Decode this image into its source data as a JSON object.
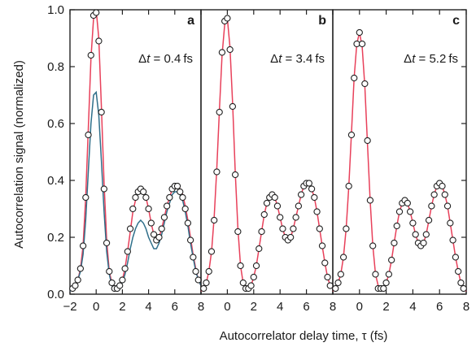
{
  "chart_data": {
    "type": "scatter",
    "ylabel": "Autocorrelation signal (normalized)",
    "xlabel": "Autocorrelator delay time, τ (fs)",
    "ylim": [
      0,
      1.0
    ],
    "y_ticks": [
      "0.0",
      "0.2",
      "0.4",
      "0.6",
      "0.8",
      "1.0"
    ],
    "grid": false,
    "colors": {
      "fit": "#e8405a",
      "fit_a_secondary": "#d66a2a",
      "fit_a_tertiary": "#2f6f8a",
      "data_marker": "#ffffff",
      "marker_edge": "#222222"
    },
    "panels": [
      {
        "letter": "a",
        "annotation_symbol": "Δ",
        "annotation_var": "t",
        "annotation_value": " = 0.4 fs",
        "xlim": [
          -2,
          8
        ],
        "x_ticks": [
          "−2",
          "0",
          "2",
          "4",
          "6",
          "8"
        ],
        "series": [
          {
            "kind": "points",
            "x": [
              -1.8,
              -1.6,
              -1.4,
              -1.2,
              -1.0,
              -0.8,
              -0.6,
              -0.4,
              -0.2,
              0.0,
              0.2,
              0.4,
              0.6,
              0.8,
              1.0,
              1.2,
              1.4,
              1.6,
              1.8,
              2.0,
              2.2,
              2.4,
              2.6,
              2.8,
              3.0,
              3.2,
              3.4,
              3.6,
              3.8,
              4.0,
              4.2,
              4.4,
              4.6,
              4.8,
              5.0,
              5.2,
              5.4,
              5.6,
              5.8,
              6.0,
              6.2,
              6.4,
              6.6,
              6.8,
              7.0,
              7.2,
              7.4,
              7.6,
              7.8
            ],
            "y": [
              0.02,
              0.03,
              0.05,
              0.09,
              0.17,
              0.34,
              0.56,
              0.84,
              0.98,
              0.99,
              0.89,
              0.64,
              0.37,
              0.18,
              0.08,
              0.04,
              0.02,
              0.02,
              0.03,
              0.05,
              0.09,
              0.15,
              0.23,
              0.3,
              0.34,
              0.36,
              0.37,
              0.36,
              0.34,
              0.3,
              0.25,
              0.21,
              0.19,
              0.2,
              0.23,
              0.27,
              0.31,
              0.34,
              0.37,
              0.38,
              0.38,
              0.36,
              0.34,
              0.3,
              0.25,
              0.19,
              0.13,
              0.08,
              0.05
            ]
          },
          {
            "kind": "line",
            "x": [
              -2.0,
              -1.8,
              -1.6,
              -1.4,
              -1.2,
              -1.0,
              -0.8,
              -0.6,
              -0.4,
              -0.2,
              0.0,
              0.2,
              0.4,
              0.6,
              0.8,
              1.0,
              1.2,
              1.4,
              1.6,
              1.8,
              2.0,
              2.2,
              2.4,
              2.6,
              2.8,
              3.0,
              3.2,
              3.4,
              3.6,
              3.8,
              4.0,
              4.2,
              4.4,
              4.6,
              4.8,
              5.0,
              5.2,
              5.4,
              5.6,
              5.8,
              6.0,
              6.2,
              6.4,
              6.6,
              6.8,
              7.0,
              7.2,
              7.4,
              7.6,
              7.8,
              8.0
            ],
            "y": [
              0.01,
              0.02,
              0.03,
              0.05,
              0.09,
              0.17,
              0.34,
              0.58,
              0.83,
              0.97,
              1.0,
              0.9,
              0.66,
              0.39,
              0.19,
              0.08,
              0.04,
              0.02,
              0.02,
              0.03,
              0.05,
              0.09,
              0.15,
              0.22,
              0.29,
              0.33,
              0.36,
              0.37,
              0.36,
              0.34,
              0.3,
              0.25,
              0.21,
              0.19,
              0.2,
              0.23,
              0.27,
              0.31,
              0.34,
              0.37,
              0.38,
              0.38,
              0.37,
              0.35,
              0.31,
              0.26,
              0.2,
              0.14,
              0.09,
              0.05,
              0.03
            ]
          },
          {
            "kind": "line",
            "x": [
              -2.0,
              -1.8,
              -1.6,
              -1.4,
              -1.2,
              -1.0,
              -0.8,
              -0.6,
              -0.4,
              -0.2,
              0.0,
              0.2,
              0.4,
              0.6,
              0.8,
              1.0,
              1.2,
              1.4,
              1.6,
              1.8,
              2.0,
              2.2,
              2.4,
              2.6,
              2.8,
              3.0,
              3.2,
              3.4,
              3.6,
              3.8,
              4.0,
              4.2,
              4.4,
              4.6,
              4.8,
              5.0,
              5.2,
              5.4,
              5.6,
              5.8,
              6.0,
              6.2,
              6.4,
              6.6,
              6.8,
              7.0,
              7.2,
              7.4,
              7.6,
              7.8,
              8.0
            ],
            "y": [
              0.01,
              0.02,
              0.03,
              0.05,
              0.08,
              0.14,
              0.26,
              0.43,
              0.6,
              0.7,
              0.71,
              0.63,
              0.47,
              0.29,
              0.15,
              0.07,
              0.03,
              0.02,
              0.02,
              0.03,
              0.04,
              0.07,
              0.11,
              0.16,
              0.2,
              0.23,
              0.25,
              0.26,
              0.25,
              0.23,
              0.2,
              0.18,
              0.16,
              0.16,
              0.18,
              0.21,
              0.25,
              0.29,
              0.32,
              0.35,
              0.36,
              0.36,
              0.35,
              0.33,
              0.29,
              0.24,
              0.18,
              0.13,
              0.08,
              0.05,
              0.03
            ]
          }
        ]
      },
      {
        "letter": "b",
        "annotation_symbol": "Δ",
        "annotation_var": "t",
        "annotation_value": " = 3.4 fs",
        "xlim": [
          -2,
          8
        ],
        "x_ticks": [
          "0",
          "2",
          "4",
          "6",
          "8"
        ],
        "series": [
          {
            "kind": "points",
            "x": [
              -1.8,
              -1.6,
              -1.4,
              -1.2,
              -1.0,
              -0.8,
              -0.6,
              -0.4,
              -0.2,
              0.0,
              0.2,
              0.4,
              0.6,
              0.8,
              1.0,
              1.2,
              1.4,
              1.6,
              1.8,
              2.0,
              2.2,
              2.4,
              2.6,
              2.8,
              3.0,
              3.2,
              3.4,
              3.6,
              3.8,
              4.0,
              4.2,
              4.4,
              4.6,
              4.8,
              5.0,
              5.2,
              5.4,
              5.6,
              5.8,
              6.0,
              6.2,
              6.4,
              6.6,
              6.8,
              7.0,
              7.2,
              7.4,
              7.6,
              7.8
            ],
            "y": [
              0.02,
              0.04,
              0.08,
              0.15,
              0.26,
              0.43,
              0.64,
              0.85,
              0.96,
              0.97,
              0.86,
              0.66,
              0.42,
              0.22,
              0.1,
              0.04,
              0.02,
              0.02,
              0.03,
              0.06,
              0.1,
              0.16,
              0.22,
              0.28,
              0.32,
              0.34,
              0.35,
              0.34,
              0.31,
              0.27,
              0.23,
              0.2,
              0.19,
              0.2,
              0.23,
              0.27,
              0.31,
              0.35,
              0.38,
              0.39,
              0.39,
              0.37,
              0.34,
              0.29,
              0.23,
              0.17,
              0.11,
              0.06,
              0.03
            ]
          },
          {
            "kind": "line",
            "x": [
              -2.0,
              -1.8,
              -1.6,
              -1.4,
              -1.2,
              -1.0,
              -0.8,
              -0.6,
              -0.4,
              -0.2,
              0.0,
              0.2,
              0.4,
              0.6,
              0.8,
              1.0,
              1.2,
              1.4,
              1.6,
              1.8,
              2.0,
              2.2,
              2.4,
              2.6,
              2.8,
              3.0,
              3.2,
              3.4,
              3.6,
              3.8,
              4.0,
              4.2,
              4.4,
              4.6,
              4.8,
              5.0,
              5.2,
              5.4,
              5.6,
              5.8,
              6.0,
              6.2,
              6.4,
              6.6,
              6.8,
              7.0,
              7.2,
              7.4,
              7.6,
              7.8,
              8.0
            ],
            "y": [
              0.01,
              0.02,
              0.04,
              0.08,
              0.15,
              0.27,
              0.44,
              0.65,
              0.84,
              0.95,
              0.97,
              0.87,
              0.67,
              0.43,
              0.23,
              0.1,
              0.04,
              0.02,
              0.02,
              0.03,
              0.06,
              0.1,
              0.16,
              0.22,
              0.28,
              0.32,
              0.34,
              0.35,
              0.34,
              0.31,
              0.27,
              0.23,
              0.2,
              0.19,
              0.2,
              0.23,
              0.27,
              0.31,
              0.35,
              0.38,
              0.39,
              0.39,
              0.37,
              0.34,
              0.29,
              0.23,
              0.17,
              0.11,
              0.06,
              0.03,
              0.02
            ]
          }
        ]
      },
      {
        "letter": "c",
        "annotation_symbol": "Δ",
        "annotation_var": "t",
        "annotation_value": " = 5.2 fs",
        "xlim": [
          -2,
          8
        ],
        "x_ticks": [
          "0",
          "2",
          "4",
          "6",
          "8"
        ],
        "series": [
          {
            "kind": "points",
            "x": [
              -1.8,
              -1.6,
              -1.4,
              -1.2,
              -1.0,
              -0.8,
              -0.6,
              -0.4,
              -0.2,
              0.0,
              0.2,
              0.4,
              0.6,
              0.8,
              1.0,
              1.2,
              1.4,
              1.6,
              1.8,
              2.0,
              2.2,
              2.4,
              2.6,
              2.8,
              3.0,
              3.2,
              3.4,
              3.6,
              3.8,
              4.0,
              4.2,
              4.4,
              4.6,
              4.8,
              5.0,
              5.2,
              5.4,
              5.6,
              5.8,
              6.0,
              6.2,
              6.4,
              6.6,
              6.8,
              7.0,
              7.2,
              7.4,
              7.6,
              7.8
            ],
            "y": [
              0.02,
              0.04,
              0.07,
              0.13,
              0.23,
              0.38,
              0.56,
              0.76,
              0.88,
              0.92,
              0.88,
              0.74,
              0.54,
              0.33,
              0.17,
              0.07,
              0.02,
              0.02,
              0.02,
              0.04,
              0.07,
              0.12,
              0.18,
              0.24,
              0.29,
              0.32,
              0.33,
              0.32,
              0.29,
              0.25,
              0.21,
              0.18,
              0.17,
              0.18,
              0.21,
              0.26,
              0.31,
              0.35,
              0.38,
              0.39,
              0.38,
              0.35,
              0.31,
              0.25,
              0.19,
              0.13,
              0.08,
              0.04,
              0.02
            ]
          },
          {
            "kind": "line",
            "x": [
              -2.0,
              -1.8,
              -1.6,
              -1.4,
              -1.2,
              -1.0,
              -0.8,
              -0.6,
              -0.4,
              -0.2,
              0.0,
              0.2,
              0.4,
              0.6,
              0.8,
              1.0,
              1.2,
              1.4,
              1.6,
              1.8,
              2.0,
              2.2,
              2.4,
              2.6,
              2.8,
              3.0,
              3.2,
              3.4,
              3.6,
              3.8,
              4.0,
              4.2,
              4.4,
              4.6,
              4.8,
              5.0,
              5.2,
              5.4,
              5.6,
              5.8,
              6.0,
              6.2,
              6.4,
              6.6,
              6.8,
              7.0,
              7.2,
              7.4,
              7.6,
              7.8,
              8.0
            ],
            "y": [
              0.01,
              0.02,
              0.04,
              0.07,
              0.13,
              0.23,
              0.38,
              0.57,
              0.76,
              0.88,
              0.92,
              0.87,
              0.73,
              0.53,
              0.33,
              0.17,
              0.07,
              0.03,
              0.02,
              0.02,
              0.04,
              0.07,
              0.12,
              0.18,
              0.24,
              0.29,
              0.32,
              0.33,
              0.32,
              0.29,
              0.25,
              0.21,
              0.18,
              0.17,
              0.18,
              0.21,
              0.26,
              0.31,
              0.35,
              0.38,
              0.39,
              0.38,
              0.35,
              0.31,
              0.25,
              0.19,
              0.13,
              0.08,
              0.04,
              0.02,
              0.01
            ]
          }
        ]
      }
    ]
  }
}
